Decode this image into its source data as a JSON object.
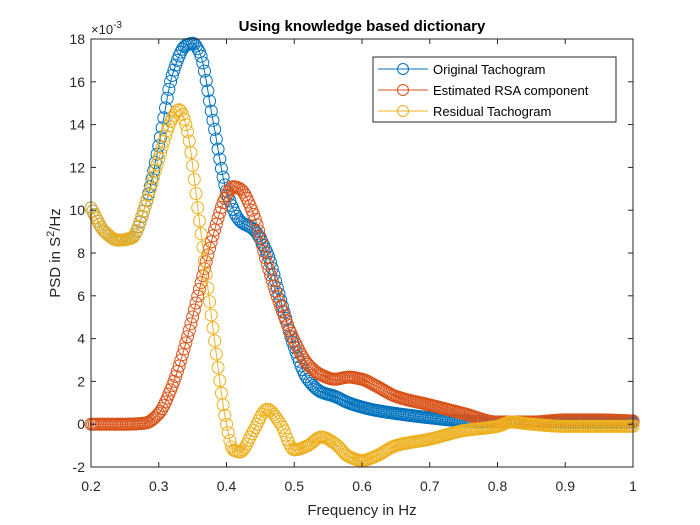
{
  "chart_data": {
    "type": "line",
    "title": "Using knowledge based dictionary",
    "xlabel": "Frequency in Hz",
    "ylabel_main": "PSD in S",
    "ylabel_sup": "2",
    "ylabel_tail": "/Hz",
    "y_exponent_base": "×10",
    "y_exponent_power": "-3",
    "xlim": [
      0.2,
      1.0
    ],
    "ylim": [
      -2,
      18
    ],
    "x_ticks": [
      0.2,
      0.3,
      0.4,
      0.5,
      0.6,
      0.7,
      0.8,
      0.9,
      1.0
    ],
    "x_tick_labels": [
      "0.2",
      "0.3",
      "0.4",
      "0.5",
      "0.6",
      "0.7",
      "0.8",
      "0.9",
      "1"
    ],
    "y_ticks": [
      -2,
      0,
      2,
      4,
      6,
      8,
      10,
      12,
      14,
      16,
      18
    ],
    "y_tick_labels": [
      "-2",
      "0",
      "2",
      "4",
      "6",
      "8",
      "10",
      "12",
      "14",
      "16",
      "18"
    ],
    "grid": false,
    "legend_position": "top-right",
    "marker": "circle",
    "series": [
      {
        "name": "Original Tachogram",
        "color": "#0072BD",
        "x": [
          0.2,
          0.22,
          0.24,
          0.26,
          0.28,
          0.3,
          0.32,
          0.34,
          0.35,
          0.36,
          0.38,
          0.4,
          0.42,
          0.44,
          0.46,
          0.48,
          0.5,
          0.52,
          0.54,
          0.56,
          0.58,
          0.6,
          0.62,
          0.65,
          0.7,
          0.75,
          0.8,
          0.85,
          0.9,
          0.95,
          1.0
        ],
        "y": [
          10.1,
          9.0,
          8.6,
          8.7,
          10.2,
          13.0,
          16.3,
          17.7,
          17.8,
          17.4,
          14.2,
          10.9,
          9.5,
          9.1,
          8.0,
          5.8,
          3.6,
          2.1,
          1.5,
          1.3,
          1.0,
          0.8,
          0.65,
          0.5,
          0.3,
          0.15,
          0.1,
          0.1,
          0.1,
          0.1,
          0.1
        ]
      },
      {
        "name": "Estimated RSA component",
        "color": "#D95319",
        "x": [
          0.2,
          0.25,
          0.28,
          0.3,
          0.32,
          0.34,
          0.36,
          0.38,
          0.4,
          0.41,
          0.42,
          0.44,
          0.46,
          0.48,
          0.5,
          0.52,
          0.54,
          0.56,
          0.58,
          0.6,
          0.62,
          0.65,
          0.7,
          0.75,
          0.8,
          0.85,
          0.9,
          0.95,
          1.0
        ],
        "y": [
          0.0,
          0.0,
          0.05,
          0.5,
          1.8,
          3.8,
          6.3,
          8.8,
          10.7,
          11.1,
          11.0,
          9.8,
          7.5,
          5.5,
          3.9,
          2.8,
          2.3,
          2.1,
          2.2,
          2.1,
          1.8,
          1.3,
          0.9,
          0.5,
          0.1,
          0.1,
          0.2,
          0.2,
          0.15
        ]
      },
      {
        "name": "Residual Tachogram",
        "color": "#EDB120",
        "x": [
          0.2,
          0.22,
          0.24,
          0.26,
          0.28,
          0.3,
          0.32,
          0.33,
          0.34,
          0.36,
          0.38,
          0.4,
          0.41,
          0.42,
          0.44,
          0.46,
          0.48,
          0.5,
          0.52,
          0.54,
          0.56,
          0.58,
          0.6,
          0.62,
          0.65,
          0.7,
          0.75,
          0.8,
          0.82,
          0.85,
          0.9,
          0.95,
          1.0
        ],
        "y": [
          10.1,
          9.0,
          8.6,
          8.7,
          10.2,
          12.4,
          14.3,
          14.7,
          14.0,
          9.5,
          4.5,
          0.0,
          -1.2,
          -1.3,
          -0.3,
          0.7,
          0.0,
          -1.2,
          -1.0,
          -0.6,
          -0.9,
          -1.5,
          -1.7,
          -1.5,
          -1.0,
          -0.7,
          -0.3,
          -0.1,
          0.1,
          0.0,
          -0.1,
          -0.1,
          -0.1
        ]
      }
    ]
  }
}
